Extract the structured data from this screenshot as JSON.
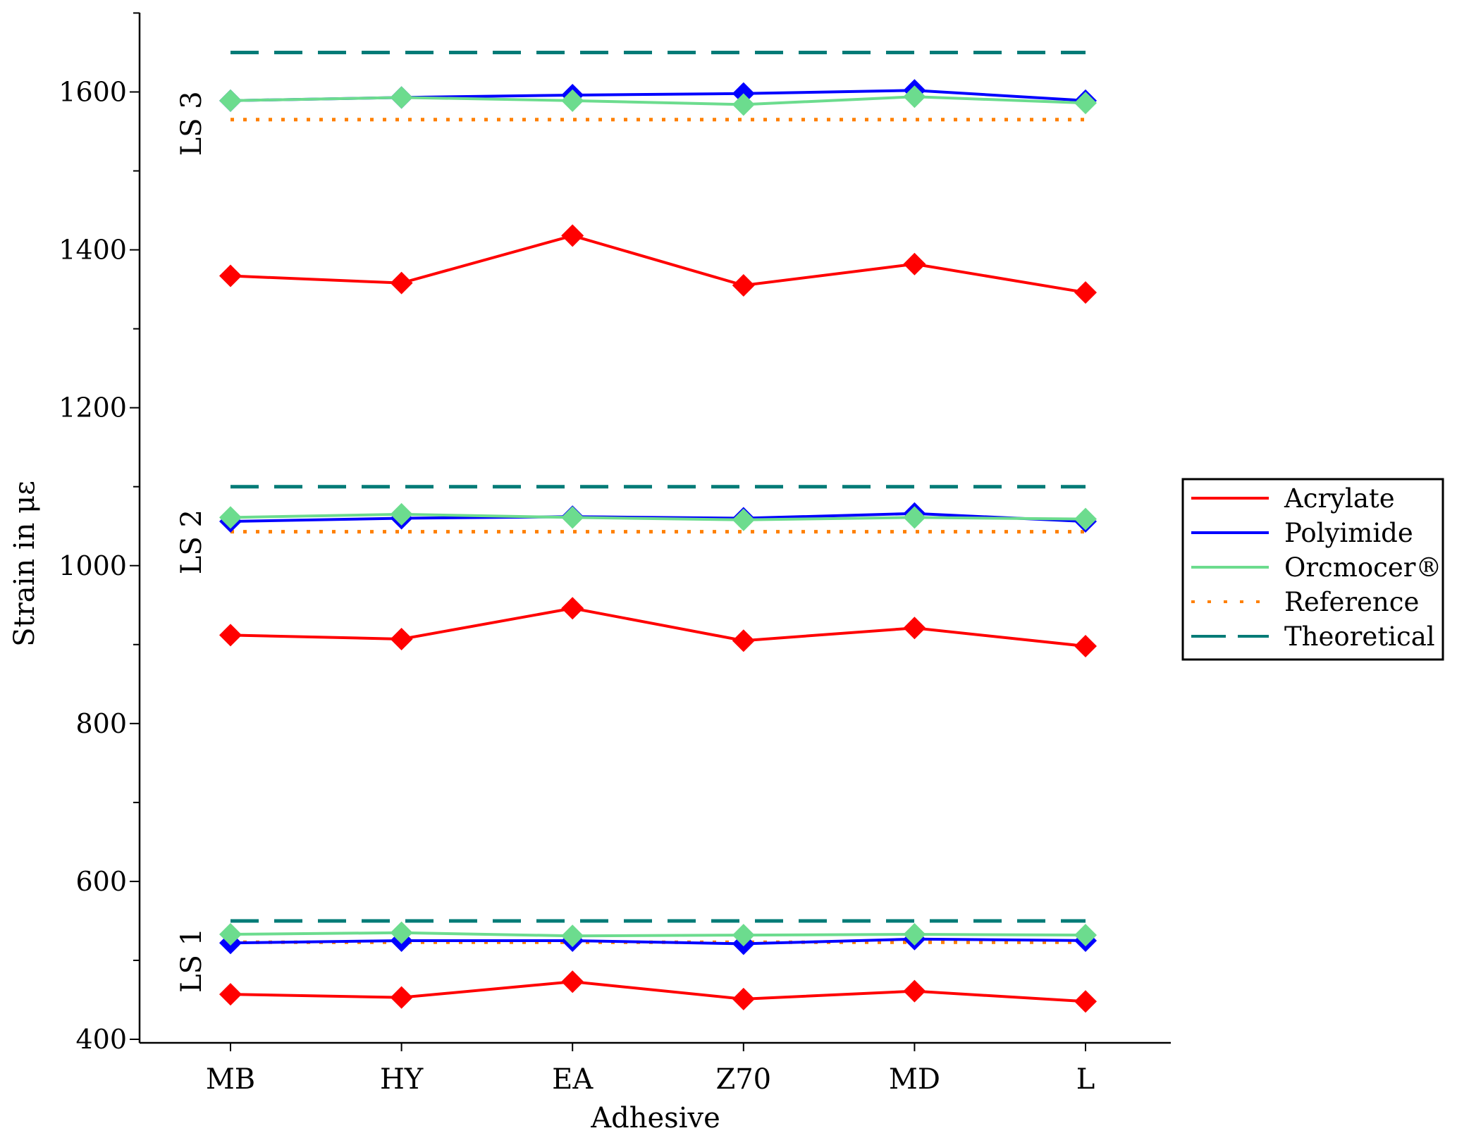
{
  "chart_data": {
    "type": "line",
    "xlabel": "Adhesive",
    "ylabel": "Strain in με",
    "ylim": [
      400,
      1700
    ],
    "yticks": [
      400,
      600,
      800,
      1000,
      1200,
      1400,
      1600
    ],
    "categories": [
      "MB",
      "HY",
      "EA",
      "Z70",
      "MD",
      "L"
    ],
    "groups": [
      {
        "label": "LS 1",
        "label_y": 500
      },
      {
        "label": "LS 2",
        "label_y": 1030
      },
      {
        "label": "LS 3",
        "label_y": 1560
      }
    ],
    "series": [
      {
        "name": "Acrylate",
        "color": "#ff0000",
        "style": "solid",
        "marker": "diamond",
        "values": [
          [
            457,
            453,
            473,
            451,
            461,
            448
          ],
          [
            912,
            907,
            946,
            905,
            921,
            898
          ],
          [
            1367,
            1358,
            1418,
            1355,
            1382,
            1346
          ]
        ]
      },
      {
        "name": "Polyimide",
        "color": "#0000ff",
        "style": "solid",
        "marker": "diamond",
        "values": [
          [
            522,
            525,
            525,
            521,
            527,
            525
          ],
          [
            1056,
            1060,
            1062,
            1060,
            1066,
            1056
          ],
          [
            1589,
            1593,
            1596,
            1598,
            1602,
            1589
          ]
        ]
      },
      {
        "name": "Orcmocer®",
        "color": "#6cdc8e",
        "style": "solid",
        "marker": "diamond",
        "values": [
          [
            533,
            535,
            531,
            532,
            533,
            532
          ],
          [
            1061,
            1065,
            1061,
            1058,
            1061,
            1059
          ],
          [
            1589,
            1593,
            1589,
            1584,
            1594,
            1586
          ]
        ]
      },
      {
        "name": "Reference",
        "color": "#ff8000",
        "style": "dotted",
        "marker": "none",
        "values": [
          [
            523,
            523,
            523,
            523,
            523,
            523
          ],
          [
            1043,
            1043,
            1043,
            1043,
            1043,
            1043
          ],
          [
            1565,
            1565,
            1565,
            1565,
            1565,
            1565
          ]
        ]
      },
      {
        "name": "Theoretical",
        "color": "#007b77",
        "style": "dashed",
        "marker": "none",
        "values": [
          [
            550,
            550,
            550,
            550,
            550,
            550
          ],
          [
            1100,
            1100,
            1100,
            1100,
            1100,
            1100
          ],
          [
            1650,
            1650,
            1650,
            1650,
            1650,
            1650
          ]
        ]
      }
    ],
    "legend": "right",
    "grid": false
  }
}
